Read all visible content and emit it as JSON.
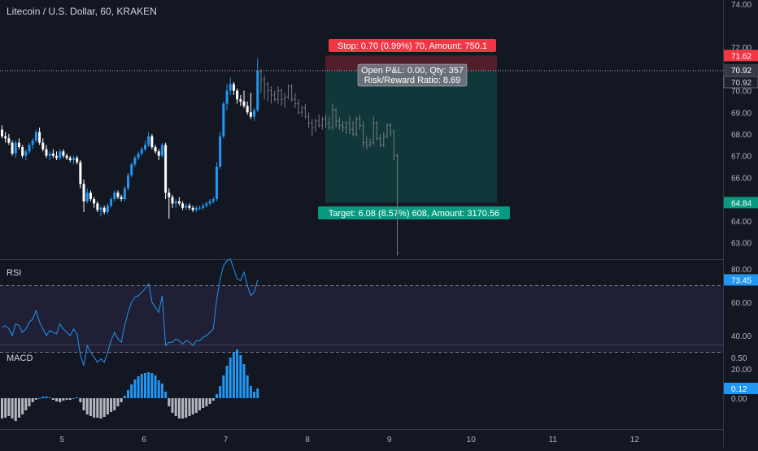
{
  "header": {
    "symbol_title": "Litecoin / U.S. Dollar, 60, KRAKEN"
  },
  "price_axis": {
    "ticks": [
      {
        "label": "74.00",
        "value": 74.0
      },
      {
        "label": "72.00",
        "value": 72.0
      },
      {
        "label": "71.00",
        "value": 71.0
      },
      {
        "label": "70.00",
        "value": 70.0
      },
      {
        "label": "69.00",
        "value": 69.0
      },
      {
        "label": "68.00",
        "value": 68.0
      },
      {
        "label": "67.00",
        "value": 67.0
      },
      {
        "label": "66.00",
        "value": 66.0
      },
      {
        "label": "64.00",
        "value": 64.0
      },
      {
        "label": "63.00",
        "value": 63.0
      }
    ],
    "marker_stop": {
      "label": "71.62",
      "value": 71.62,
      "color": "#f23645"
    },
    "marker_crosshair": {
      "label": "70.92",
      "value": 70.92
    },
    "marker_last": {
      "label": "70.92",
      "value": 70.92
    },
    "marker_target": {
      "label": "64.84",
      "value": 64.84,
      "color": "#089981"
    }
  },
  "position_tool": {
    "stop_label": "Stop: 0.70 (0.99%) 70, Amount: 750.1",
    "open_pnl_label": "Open P&L: 0.00, Qty: 357",
    "risk_reward_label": "Risk/Reward Ratio: 8.69",
    "target_label": "Target: 6.08 (8.57%) 608, Amount: 3170.56",
    "entry": 70.92,
    "stop": 71.62,
    "target": 64.84,
    "stop_color": "#f23645",
    "target_color": "#089981"
  },
  "rsi_panel": {
    "title": "RSI",
    "ticks": [
      {
        "label": "80.00",
        "value": 80
      },
      {
        "label": "60.00",
        "value": 60
      },
      {
        "label": "40.00",
        "value": 40
      },
      {
        "label": "20.00",
        "value": 20
      }
    ],
    "current_label": "73.45",
    "line_color": "#2196f3",
    "band_upper": 70,
    "band_lower": 30
  },
  "macd_panel": {
    "title": "MACD",
    "ticks": [
      {
        "label": "0.50",
        "value": 0.5
      },
      {
        "label": "0.00",
        "value": 0.0
      }
    ],
    "current_label": "0.12"
  },
  "time_axis": {
    "labels": [
      {
        "label": "5",
        "index": 18
      },
      {
        "label": "6",
        "index": 42
      },
      {
        "label": "7",
        "index": 66
      },
      {
        "label": "8",
        "index": 90
      },
      {
        "label": "9",
        "index": 114
      },
      {
        "label": "10",
        "index": 138
      },
      {
        "label": "11",
        "index": 162
      },
      {
        "label": "12",
        "index": 186
      }
    ]
  },
  "colors": {
    "background": "#131722",
    "up": "#2196f3",
    "down": "#ffffff",
    "ghost": "#787b86",
    "rsi_band": "#7e57c2"
  },
  "chart_data": {
    "type": "candlestick",
    "title": "Litecoin / U.S. Dollar, 60, KRAKEN",
    "ylim": [
      62.3,
      74.5
    ],
    "candles": [
      [
        68.2,
        68.4,
        67.8,
        67.9
      ],
      [
        67.9,
        68.1,
        67.6,
        67.8
      ],
      [
        67.8,
        68.0,
        67.5,
        67.6
      ],
      [
        67.6,
        67.7,
        67.0,
        67.1
      ],
      [
        67.1,
        67.7,
        66.9,
        67.6
      ],
      [
        67.6,
        67.8,
        67.3,
        67.4
      ],
      [
        67.4,
        67.5,
        66.9,
        67.0
      ],
      [
        67.0,
        67.3,
        66.8,
        67.2
      ],
      [
        67.2,
        67.6,
        67.1,
        67.5
      ],
      [
        67.5,
        67.8,
        67.3,
        67.7
      ],
      [
        67.7,
        68.2,
        67.6,
        68.1
      ],
      [
        68.1,
        68.3,
        67.5,
        67.6
      ],
      [
        67.6,
        67.8,
        67.2,
        67.3
      ],
      [
        67.3,
        67.5,
        66.9,
        67.0
      ],
      [
        67.0,
        67.2,
        66.8,
        67.1
      ],
      [
        67.1,
        67.3,
        66.9,
        67.0
      ],
      [
        67.0,
        67.2,
        66.8,
        66.9
      ],
      [
        66.9,
        67.3,
        66.8,
        67.2
      ],
      [
        67.2,
        67.3,
        66.9,
        67.0
      ],
      [
        67.0,
        67.1,
        66.8,
        66.9
      ],
      [
        66.9,
        67.0,
        66.7,
        66.8
      ],
      [
        66.8,
        67.0,
        66.6,
        66.9
      ],
      [
        66.9,
        67.0,
        66.6,
        66.7
      ],
      [
        66.7,
        66.8,
        65.5,
        65.7
      ],
      [
        65.7,
        65.9,
        64.4,
        64.9
      ],
      [
        64.9,
        65.5,
        64.8,
        65.3
      ],
      [
        65.3,
        65.4,
        64.9,
        65.0
      ],
      [
        65.0,
        65.1,
        64.6,
        64.8
      ],
      [
        64.8,
        64.9,
        64.4,
        64.5
      ],
      [
        64.5,
        64.7,
        64.2,
        64.6
      ],
      [
        64.6,
        64.7,
        64.3,
        64.4
      ],
      [
        64.4,
        64.8,
        64.3,
        64.7
      ],
      [
        64.7,
        65.1,
        64.6,
        65.0
      ],
      [
        65.0,
        65.4,
        64.9,
        65.3
      ],
      [
        65.3,
        65.4,
        65.0,
        65.1
      ],
      [
        65.1,
        65.2,
        64.9,
        65.0
      ],
      [
        65.0,
        65.6,
        64.9,
        65.5
      ],
      [
        65.5,
        66.2,
        65.4,
        66.1
      ],
      [
        66.1,
        66.7,
        66.0,
        66.6
      ],
      [
        66.6,
        67.0,
        66.5,
        66.9
      ],
      [
        66.9,
        67.2,
        66.8,
        67.1
      ],
      [
        67.1,
        67.4,
        67.0,
        67.3
      ],
      [
        67.3,
        67.7,
        67.2,
        67.5
      ],
      [
        67.5,
        68.1,
        67.4,
        67.9
      ],
      [
        67.9,
        68.0,
        67.3,
        67.4
      ],
      [
        67.4,
        67.5,
        67.1,
        67.2
      ],
      [
        67.2,
        67.3,
        66.8,
        67.0
      ],
      [
        67.0,
        67.6,
        66.9,
        67.5
      ],
      [
        67.5,
        67.6,
        65.0,
        65.3
      ],
      [
        65.3,
        65.5,
        64.1,
        65.1
      ],
      [
        65.1,
        65.2,
        64.6,
        64.8
      ],
      [
        64.8,
        65.0,
        64.6,
        64.9
      ],
      [
        64.9,
        65.1,
        64.7,
        64.8
      ],
      [
        64.8,
        64.9,
        64.5,
        64.6
      ],
      [
        64.6,
        64.8,
        64.5,
        64.7
      ],
      [
        64.7,
        64.8,
        64.5,
        64.6
      ],
      [
        64.6,
        64.7,
        64.4,
        64.5
      ],
      [
        64.5,
        64.7,
        64.4,
        64.6
      ],
      [
        64.6,
        64.7,
        64.5,
        64.6
      ],
      [
        64.6,
        64.8,
        64.5,
        64.7
      ],
      [
        64.7,
        64.9,
        64.6,
        64.8
      ],
      [
        64.8,
        65.0,
        64.7,
        64.9
      ],
      [
        64.9,
        65.1,
        64.8,
        65.0
      ],
      [
        65.0,
        66.7,
        64.9,
        66.5
      ],
      [
        66.5,
        68.1,
        66.4,
        67.9
      ],
      [
        67.9,
        69.5,
        67.8,
        69.4
      ],
      [
        69.4,
        70.3,
        69.1,
        70.0
      ],
      [
        70.0,
        70.6,
        69.8,
        70.3
      ],
      [
        70.3,
        70.4,
        69.8,
        70.0
      ],
      [
        70.0,
        70.1,
        69.4,
        69.6
      ],
      [
        69.6,
        69.8,
        69.3,
        69.5
      ],
      [
        69.5,
        70.0,
        69.2,
        69.3
      ],
      [
        69.3,
        69.5,
        68.9,
        69.0
      ],
      [
        69.0,
        69.9,
        68.7,
        68.8
      ],
      [
        68.8,
        69.2,
        68.6,
        69.1
      ],
      [
        69.1,
        71.5,
        69.0,
        70.9
      ]
    ],
    "future_candles": [
      [
        70.9,
        71.0,
        69.9,
        70.5
      ],
      [
        70.5,
        70.7,
        69.6,
        70.3
      ],
      [
        70.3,
        70.4,
        69.5,
        70.0
      ],
      [
        70.0,
        70.2,
        69.4,
        69.8
      ],
      [
        69.8,
        70.0,
        69.5,
        69.6
      ],
      [
        69.6,
        70.2,
        69.4,
        70.0
      ],
      [
        70.0,
        70.1,
        69.3,
        69.6
      ],
      [
        69.6,
        69.9,
        69.2,
        69.7
      ],
      [
        69.7,
        70.3,
        69.6,
        70.2
      ],
      [
        70.2,
        70.3,
        69.5,
        69.6
      ],
      [
        69.6,
        69.9,
        69.2,
        69.4
      ],
      [
        69.4,
        69.6,
        68.9,
        69.0
      ],
      [
        69.0,
        69.3,
        68.8,
        69.2
      ],
      [
        69.2,
        69.4,
        68.7,
        68.8
      ],
      [
        68.8,
        69.0,
        68.3,
        68.5
      ],
      [
        68.5,
        68.7,
        67.9,
        68.3
      ],
      [
        68.3,
        68.7,
        68.1,
        68.6
      ],
      [
        68.6,
        68.9,
        68.3,
        68.4
      ],
      [
        68.4,
        68.8,
        68.2,
        68.7
      ],
      [
        68.7,
        68.9,
        68.3,
        68.5
      ],
      [
        68.5,
        68.8,
        68.2,
        68.3
      ],
      [
        68.3,
        69.4,
        68.2,
        69.1
      ],
      [
        69.1,
        69.2,
        68.3,
        68.6
      ],
      [
        68.6,
        68.8,
        68.2,
        68.4
      ],
      [
        68.4,
        68.6,
        68.1,
        68.3
      ],
      [
        68.3,
        68.6,
        68.0,
        68.5
      ],
      [
        68.5,
        68.8,
        68.0,
        68.2
      ],
      [
        68.2,
        68.6,
        67.9,
        68.0
      ],
      [
        68.0,
        68.8,
        67.9,
        68.7
      ],
      [
        68.7,
        68.9,
        68.2,
        68.4
      ],
      [
        68.4,
        68.6,
        67.4,
        67.6
      ],
      [
        67.6,
        67.9,
        67.3,
        67.5
      ],
      [
        67.5,
        67.8,
        67.4,
        67.6
      ],
      [
        67.6,
        68.8,
        67.5,
        68.5
      ],
      [
        68.5,
        68.6,
        67.7,
        67.8
      ],
      [
        67.8,
        68.0,
        67.4,
        67.5
      ],
      [
        67.5,
        68.1,
        67.4,
        67.9
      ],
      [
        67.9,
        68.5,
        67.8,
        68.4
      ],
      [
        68.4,
        68.5,
        67.9,
        68.1
      ],
      [
        68.1,
        68.2,
        66.8,
        67.0
      ],
      [
        67.0,
        67.1,
        62.4,
        62.5
      ]
    ],
    "rsi": [
      45,
      46,
      44,
      40,
      47,
      46,
      42,
      44,
      48,
      50,
      55,
      48,
      44,
      40,
      43,
      42,
      41,
      47,
      44,
      42,
      40,
      44,
      41,
      28,
      22,
      34,
      30,
      27,
      24,
      26,
      24,
      30,
      37,
      42,
      38,
      36,
      46,
      54,
      60,
      63,
      64,
      66,
      68,
      71,
      60,
      57,
      54,
      64,
      34,
      36,
      36,
      38,
      37,
      35,
      37,
      36,
      34,
      37,
      37,
      39,
      40,
      42,
      44,
      62,
      74,
      82,
      85,
      86,
      80,
      74,
      73,
      78,
      70,
      64,
      66,
      73.45
    ],
    "macd_hist": [
      -0.25,
      -0.24,
      -0.22,
      -0.25,
      -0.28,
      -0.24,
      -0.2,
      -0.15,
      -0.1,
      -0.05,
      -0.02,
      0.0,
      0.02,
      0.02,
      0.01,
      -0.02,
      -0.04,
      -0.05,
      -0.03,
      -0.02,
      -0.02,
      0.0,
      0.01,
      -0.05,
      -0.15,
      -0.2,
      -0.22,
      -0.24,
      -0.24,
      -0.25,
      -0.23,
      -0.2,
      -0.17,
      -0.15,
      -0.1,
      -0.05,
      0.03,
      0.1,
      0.17,
      0.23,
      0.27,
      0.3,
      0.31,
      0.32,
      0.31,
      0.28,
      0.22,
      0.18,
      0.08,
      -0.1,
      -0.18,
      -0.22,
      -0.25,
      -0.25,
      -0.24,
      -0.22,
      -0.2,
      -0.18,
      -0.15,
      -0.12,
      -0.1,
      -0.07,
      -0.03,
      0.05,
      0.15,
      0.28,
      0.4,
      0.5,
      0.57,
      0.6,
      0.53,
      0.42,
      0.28,
      0.15,
      0.08,
      0.12
    ]
  }
}
